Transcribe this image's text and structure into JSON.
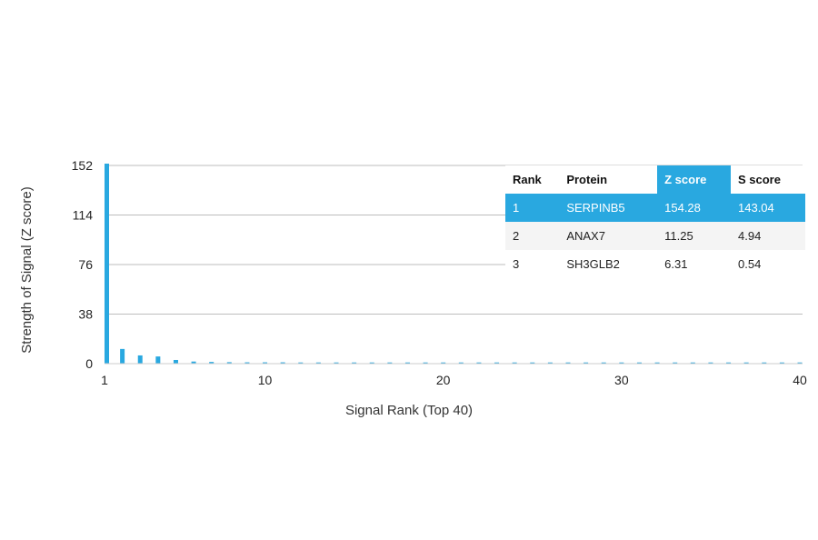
{
  "chart_data": {
    "type": "bar",
    "xlabel": "Signal Rank (Top 40)",
    "ylabel": "Strength of Signal (Z score)",
    "ylim": [
      0,
      152
    ],
    "yticks": [
      0,
      38,
      76,
      114,
      152
    ],
    "xlim": [
      1,
      40
    ],
    "xticks": [
      1,
      10,
      20,
      30,
      40
    ],
    "grid": "horizontal",
    "color": "#29a8e0",
    "x": [
      1,
      2,
      3,
      4,
      5,
      6,
      7,
      8,
      9,
      10,
      11,
      12,
      13,
      14,
      15,
      16,
      17,
      18,
      19,
      20,
      21,
      22,
      23,
      24,
      25,
      26,
      27,
      28,
      29,
      30,
      31,
      32,
      33,
      34,
      35,
      36,
      37,
      38,
      39,
      40
    ],
    "values": [
      154.28,
      11.25,
      6.31,
      5.5,
      2.8,
      1.6,
      1.3,
      1.1,
      1.0,
      1.0,
      1.0,
      0.9,
      0.9,
      0.9,
      0.9,
      0.9,
      0.9,
      0.9,
      0.9,
      0.9,
      0.9,
      0.9,
      0.9,
      0.9,
      0.9,
      0.9,
      0.9,
      0.9,
      0.9,
      0.9,
      0.9,
      0.9,
      0.9,
      0.9,
      0.9,
      0.9,
      0.9,
      0.9,
      0.9,
      0.9
    ]
  },
  "table": {
    "headers": [
      "Rank",
      "Protein",
      "Z score",
      "S score"
    ],
    "highlight_color": "#29a8e0",
    "rows": [
      [
        "1",
        "SERPINB5",
        "154.28",
        "143.04"
      ],
      [
        "2",
        "ANAX7",
        "11.25",
        "4.94"
      ],
      [
        "3",
        "SH3GLB2",
        "6.31",
        "0.54"
      ]
    ]
  }
}
